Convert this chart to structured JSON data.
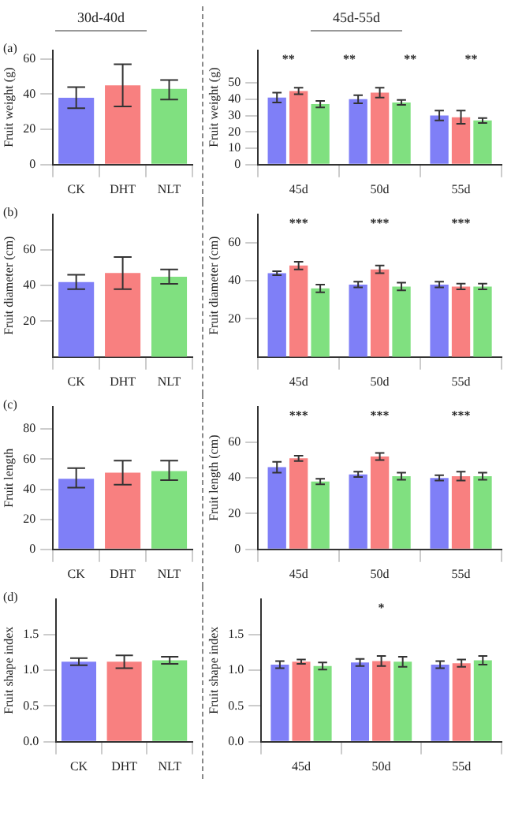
{
  "chart_data": [
    {
      "type": "bar",
      "title": "(a)",
      "subtitle": "30d-40d",
      "ylabel": "Fruit weight (g)",
      "categories": [
        "CK",
        "DHT",
        "NLT"
      ],
      "values": [
        38,
        45,
        43
      ],
      "colors": [
        "#7f7ff7",
        "#f88080",
        "#80e080"
      ],
      "errors": [
        [
          32,
          44
        ],
        [
          33,
          57
        ],
        [
          37,
          48
        ]
      ],
      "ylim": [
        0,
        65
      ],
      "yticks": [
        0,
        20,
        40,
        60
      ],
      "grid": false,
      "legend": false
    },
    {
      "type": "bar",
      "subtitle": "45d-55d",
      "ylabel": "Fruit weight (g)",
      "categories": [
        "45d",
        "50d",
        "55d"
      ],
      "series": [
        {
          "color": "#7f7ff7",
          "values": [
            41,
            40,
            30
          ],
          "errors": [
            3,
            2.5,
            3
          ]
        },
        {
          "color": "#f88080",
          "values": [
            45,
            44,
            29
          ],
          "errors": [
            2,
            3,
            4
          ]
        },
        {
          "color": "#80e080",
          "values": [
            37,
            38,
            27
          ],
          "errors": [
            2,
            1.5,
            1.5
          ]
        }
      ],
      "ylim": [
        0,
        70
      ],
      "yticks": [
        0,
        10,
        20,
        30,
        40,
        50
      ],
      "grid": false,
      "legend": false,
      "annotations": [
        "**",
        "**",
        "**",
        "**"
      ]
    },
    {
      "type": "bar",
      "title": "(b)",
      "ylabel": "Fruit diameter (cm)",
      "categories": [
        "CK",
        "DHT",
        "NLT"
      ],
      "values": [
        42,
        47,
        45
      ],
      "colors": [
        "#7f7ff7",
        "#f88080",
        "#80e080"
      ],
      "errors": [
        [
          38,
          46
        ],
        [
          38,
          56
        ],
        [
          41,
          49
        ]
      ],
      "ylim": [
        0,
        80
      ],
      "yticks": [
        20,
        40,
        60
      ],
      "grid": false,
      "legend": false
    },
    {
      "type": "bar",
      "ylabel": "Fruit diameter (cm)",
      "categories": [
        "45d",
        "50d",
        "55d"
      ],
      "series": [
        {
          "color": "#7f7ff7",
          "values": [
            44,
            38,
            38
          ],
          "errors": [
            1,
            1.5,
            1.5
          ]
        },
        {
          "color": "#f88080",
          "values": [
            48,
            46,
            37
          ],
          "errors": [
            2,
            2,
            1.5
          ]
        },
        {
          "color": "#80e080",
          "values": [
            36,
            37,
            37
          ],
          "errors": [
            2,
            2,
            1.5
          ]
        }
      ],
      "ylim": [
        0,
        75
      ],
      "yticks": [
        20,
        40,
        60
      ],
      "grid": false,
      "legend": false,
      "annotations": [
        "***",
        "***",
        "***"
      ]
    },
    {
      "type": "bar",
      "title": "(c)",
      "ylabel": "Fruit length",
      "categories": [
        "CK",
        "DHT",
        "NLT"
      ],
      "values": [
        47,
        51,
        52
      ],
      "colors": [
        "#7f7ff7",
        "#f88080",
        "#80e080"
      ],
      "errors": [
        [
          41,
          54
        ],
        [
          43,
          59
        ],
        [
          46,
          59
        ]
      ],
      "ylim": [
        0,
        95
      ],
      "yticks": [
        0,
        20,
        40,
        60,
        80
      ],
      "grid": false,
      "legend": false
    },
    {
      "type": "bar",
      "ylabel": "Fruit length (cm)",
      "categories": [
        "45d",
        "50d",
        "55d"
      ],
      "series": [
        {
          "color": "#7f7ff7",
          "values": [
            46,
            42,
            40
          ],
          "errors": [
            3,
            1.5,
            1.5
          ]
        },
        {
          "color": "#f88080",
          "values": [
            51,
            52,
            41
          ],
          "errors": [
            1.5,
            2,
            2.5
          ]
        },
        {
          "color": "#80e080",
          "values": [
            38,
            41,
            41
          ],
          "errors": [
            1.5,
            2,
            2
          ]
        }
      ],
      "ylim": [
        0,
        80
      ],
      "yticks": [
        0,
        20,
        40,
        60
      ],
      "grid": false,
      "legend": false,
      "annotations": [
        "***",
        "***",
        "***"
      ]
    },
    {
      "type": "bar",
      "title": "(d)",
      "ylabel": "Fruit shape index",
      "categories": [
        "CK",
        "DHT",
        "NLT"
      ],
      "values": [
        1.12,
        1.12,
        1.14
      ],
      "colors": [
        "#7f7ff7",
        "#f88080",
        "#80e080"
      ],
      "errors": [
        [
          1.07,
          1.17
        ],
        [
          1.03,
          1.21
        ],
        [
          1.09,
          1.19
        ]
      ],
      "ylim": [
        0,
        2
      ],
      "yticks": [
        {
          "value": 0,
          "label": "0.0"
        },
        {
          "value": 0.5,
          "label": "0.5"
        },
        {
          "value": 1,
          "label": "1.0"
        },
        {
          "value": 1.5,
          "label": "1.5"
        }
      ],
      "grid": false,
      "legend": false
    },
    {
      "type": "bar",
      "ylabel": "Fruit shape index",
      "categories": [
        "45d",
        "50d",
        "55d"
      ],
      "series": [
        {
          "color": "#7f7ff7",
          "values": [
            1.08,
            1.11,
            1.08
          ],
          "errors": [
            0.05,
            0.05,
            0.05
          ]
        },
        {
          "color": "#f88080",
          "values": [
            1.12,
            1.13,
            1.1
          ],
          "errors": [
            0.03,
            0.07,
            0.05
          ]
        },
        {
          "color": "#80e080",
          "values": [
            1.06,
            1.12,
            1.14
          ],
          "errors": [
            0.05,
            0.07,
            0.06
          ]
        }
      ],
      "ylim": [
        0,
        2
      ],
      "yticks": [
        {
          "value": 0,
          "label": "0.0"
        },
        {
          "value": 0.5,
          "label": "0.5"
        },
        {
          "value": 1,
          "label": "1.0"
        },
        {
          "value": 1.5,
          "label": "1.5"
        }
      ],
      "grid": false,
      "legend": false,
      "annotations": [
        "*"
      ]
    }
  ]
}
